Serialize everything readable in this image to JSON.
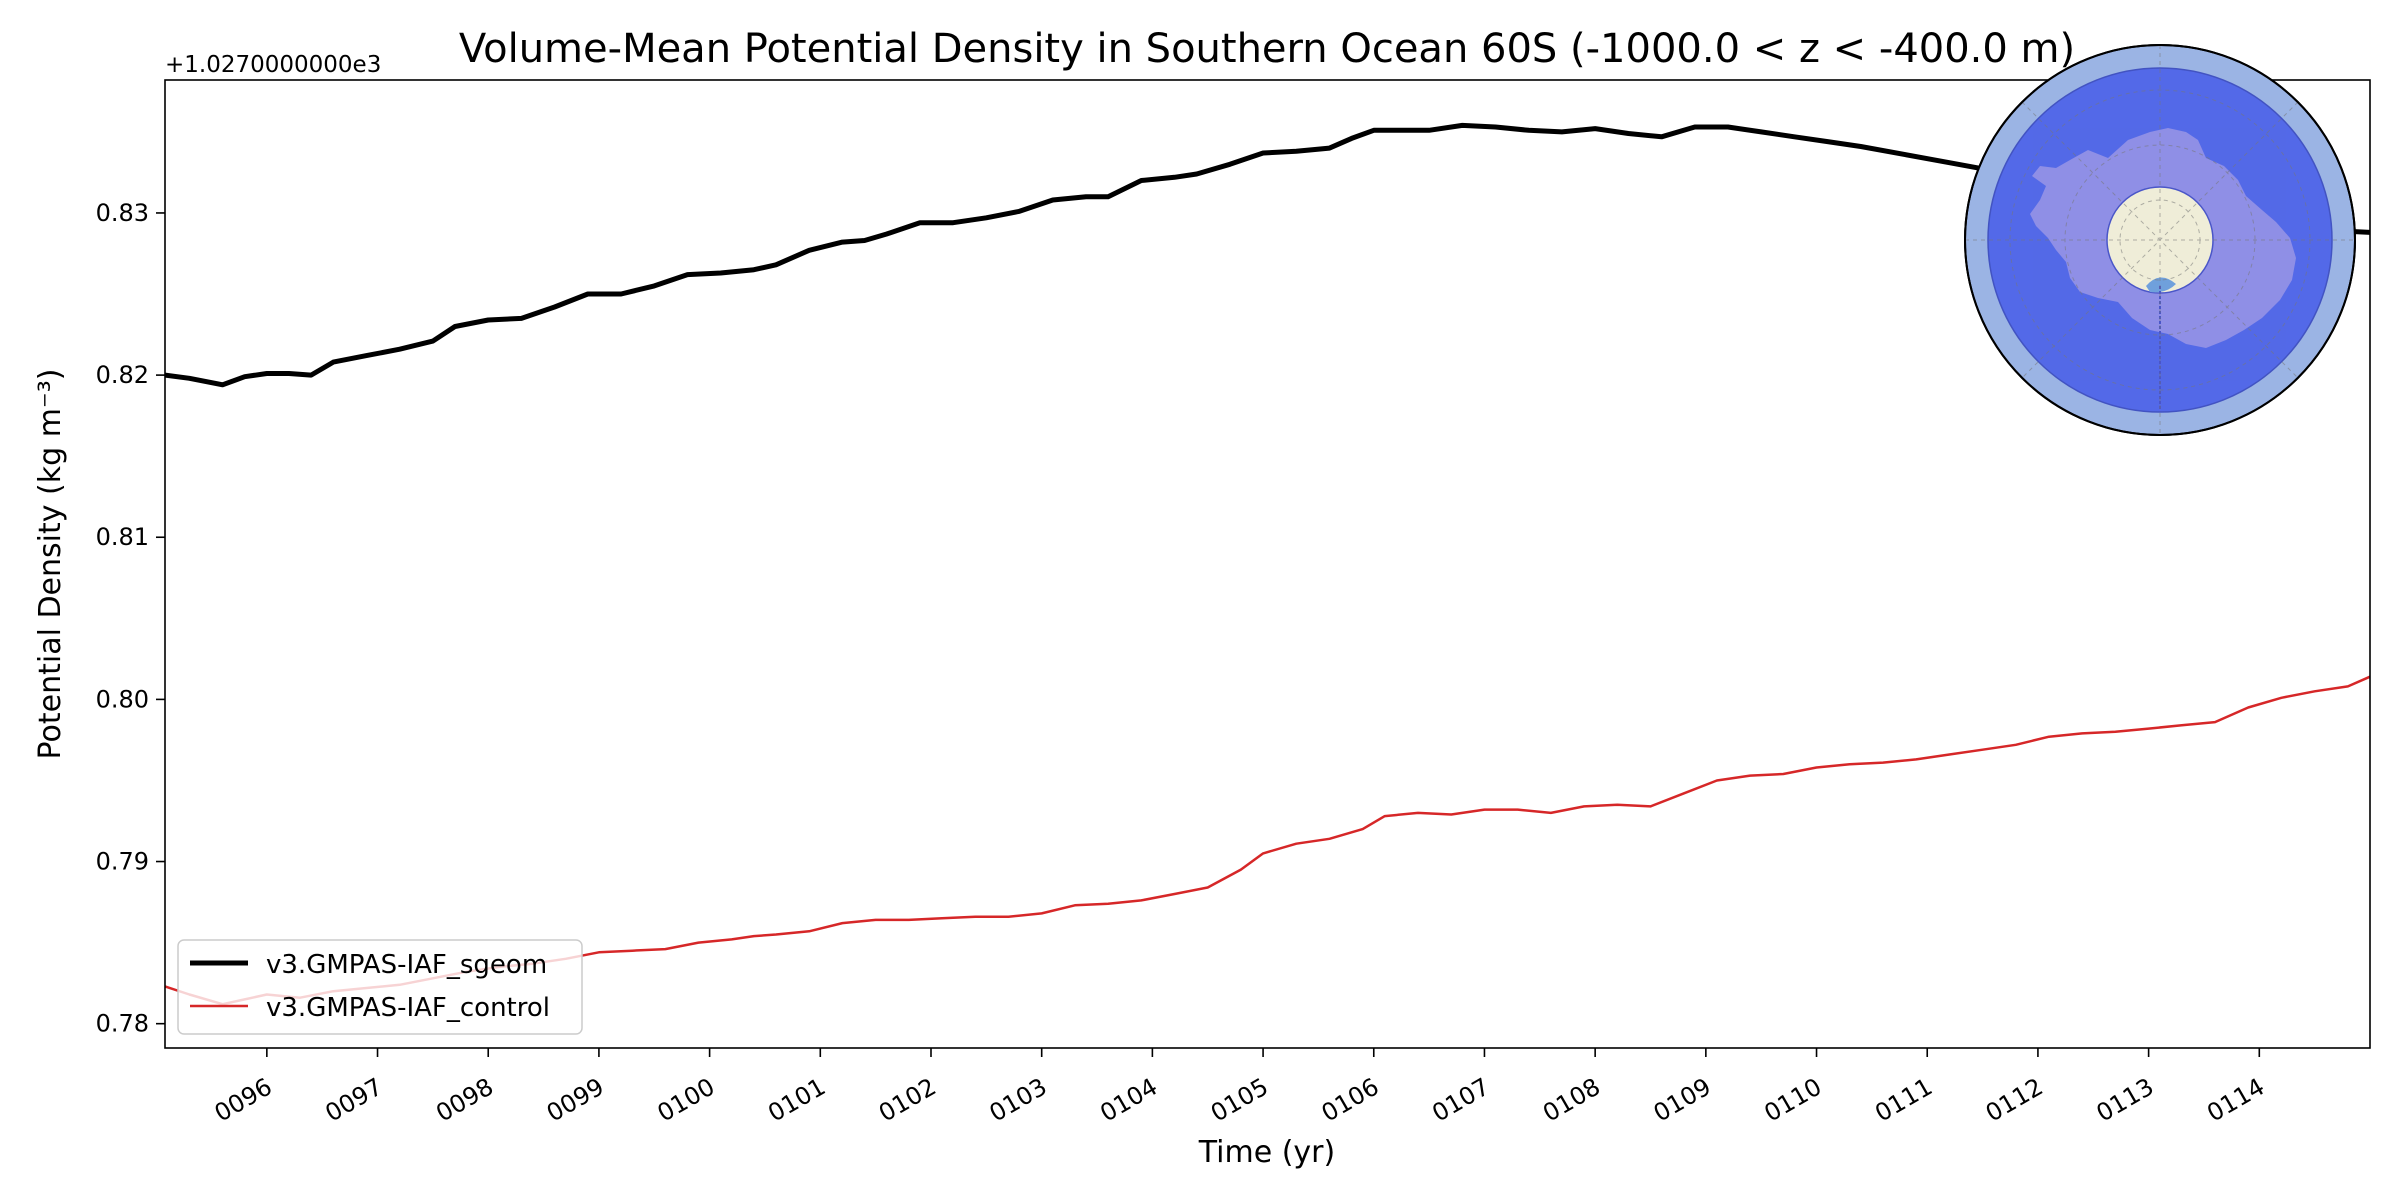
{
  "chart_data": {
    "type": "line",
    "title": "Volume-Mean Potential Density in Southern Ocean 60S (-1000.0 < z < -400.0 m)",
    "xlabel": "Time (yr)",
    "ylabel": "Potential Density (kg m⁻³)",
    "offset_label": "+1.0270000000e3",
    "xlim": [
      95.08,
      115.0
    ],
    "ylim": [
      0.7785,
      0.8382
    ],
    "x_ticks": [
      96,
      97,
      98,
      99,
      100,
      101,
      102,
      103,
      104,
      105,
      106,
      107,
      108,
      109,
      110,
      111,
      112,
      113,
      114
    ],
    "x_tick_labels": [
      "0096",
      "0097",
      "0098",
      "0099",
      "0100",
      "0101",
      "0102",
      "0103",
      "0104",
      "0105",
      "0106",
      "0107",
      "0108",
      "0109",
      "0110",
      "0111",
      "0112",
      "0113",
      "0114"
    ],
    "y_ticks": [
      0.78,
      0.79,
      0.8,
      0.81,
      0.82,
      0.83
    ],
    "y_tick_labels": [
      "0.78",
      "0.79",
      "0.80",
      "0.81",
      "0.82",
      "0.83"
    ],
    "legend_position": "lower-left",
    "series": [
      {
        "name": "v3.GMPAS-IAF_sgeom",
        "color": "#000000",
        "x": [
          95.08,
          95.3,
          95.6,
          95.8,
          96.0,
          96.2,
          96.4,
          96.6,
          96.9,
          97.2,
          97.5,
          97.7,
          98.0,
          98.3,
          98.6,
          98.9,
          99.2,
          99.5,
          99.8,
          100.1,
          100.4,
          100.6,
          100.9,
          101.2,
          101.4,
          101.6,
          101.9,
          102.2,
          102.5,
          102.8,
          103.1,
          103.4,
          103.6,
          103.9,
          104.2,
          104.4,
          104.7,
          105.0,
          105.3,
          105.6,
          105.8,
          106.0,
          106.3,
          106.5,
          106.8,
          107.1,
          107.4,
          107.7,
          108.0,
          108.3,
          108.6,
          108.9,
          109.2,
          109.5,
          109.8,
          110.1,
          110.4,
          110.8,
          111.2,
          111.6,
          112.0,
          112.4,
          112.8,
          113.2,
          113.6,
          114.0,
          114.4,
          114.7,
          115.0
        ],
        "values": [
          0.82,
          0.8198,
          0.8194,
          0.8199,
          0.8201,
          0.8201,
          0.82,
          0.8208,
          0.8212,
          0.8216,
          0.8221,
          0.823,
          0.8234,
          0.8235,
          0.8242,
          0.825,
          0.825,
          0.8255,
          0.8262,
          0.8263,
          0.8265,
          0.8268,
          0.8277,
          0.8282,
          0.8283,
          0.8287,
          0.8294,
          0.8294,
          0.8297,
          0.8301,
          0.8308,
          0.831,
          0.831,
          0.832,
          0.8322,
          0.8324,
          0.833,
          0.8337,
          0.8338,
          0.834,
          0.8346,
          0.8351,
          0.8351,
          0.8351,
          0.8354,
          0.8353,
          0.8351,
          0.835,
          0.8352,
          0.8349,
          0.8347,
          0.8353,
          0.8353,
          0.835,
          0.8347,
          0.8344,
          0.8341,
          0.8336,
          0.8331,
          0.8326,
          0.832,
          0.8312,
          0.8304,
          0.83,
          0.8297,
          0.8294,
          0.8291,
          0.8289,
          0.8288
        ]
      },
      {
        "name": "v3.GMPAS-IAF_control",
        "color": "#d62728",
        "x": [
          95.08,
          95.3,
          95.6,
          95.8,
          96.0,
          96.3,
          96.6,
          96.9,
          97.2,
          97.5,
          97.8,
          98.1,
          98.4,
          98.7,
          99.0,
          99.3,
          99.6,
          99.9,
          100.2,
          100.4,
          100.6,
          100.9,
          101.2,
          101.5,
          101.8,
          102.1,
          102.4,
          102.7,
          103.0,
          103.3,
          103.6,
          103.9,
          104.2,
          104.5,
          104.8,
          105.0,
          105.3,
          105.6,
          105.9,
          106.1,
          106.4,
          106.7,
          107.0,
          107.3,
          107.6,
          107.9,
          108.2,
          108.5,
          108.8,
          109.1,
          109.4,
          109.7,
          110.0,
          110.3,
          110.6,
          110.9,
          111.2,
          111.5,
          111.8,
          112.1,
          112.4,
          112.7,
          113.0,
          113.3,
          113.6,
          113.9,
          114.2,
          114.5,
          114.8,
          115.0
        ],
        "values": [
          0.7823,
          0.7818,
          0.7812,
          0.7815,
          0.7818,
          0.7816,
          0.782,
          0.7822,
          0.7824,
          0.7828,
          0.7832,
          0.7835,
          0.7837,
          0.784,
          0.7844,
          0.7845,
          0.7846,
          0.785,
          0.7852,
          0.7854,
          0.7855,
          0.7857,
          0.7862,
          0.7864,
          0.7864,
          0.7865,
          0.7866,
          0.7866,
          0.7868,
          0.7873,
          0.7874,
          0.7876,
          0.788,
          0.7884,
          0.7895,
          0.7905,
          0.7911,
          0.7914,
          0.792,
          0.7928,
          0.793,
          0.7929,
          0.7932,
          0.7932,
          0.793,
          0.7934,
          0.7935,
          0.7934,
          0.7942,
          0.795,
          0.7953,
          0.7954,
          0.7958,
          0.796,
          0.7961,
          0.7963,
          0.7966,
          0.7969,
          0.7972,
          0.7977,
          0.7979,
          0.798,
          0.7982,
          0.7984,
          0.7986,
          0.7995,
          0.8001,
          0.8005,
          0.8008,
          0.8014
        ]
      }
    ]
  },
  "inset_map": {
    "ocean_color": "#9bb4e4",
    "region_color": "#5066e8",
    "land_color": "#8f8fe6",
    "pole_color": "#efedd8"
  }
}
